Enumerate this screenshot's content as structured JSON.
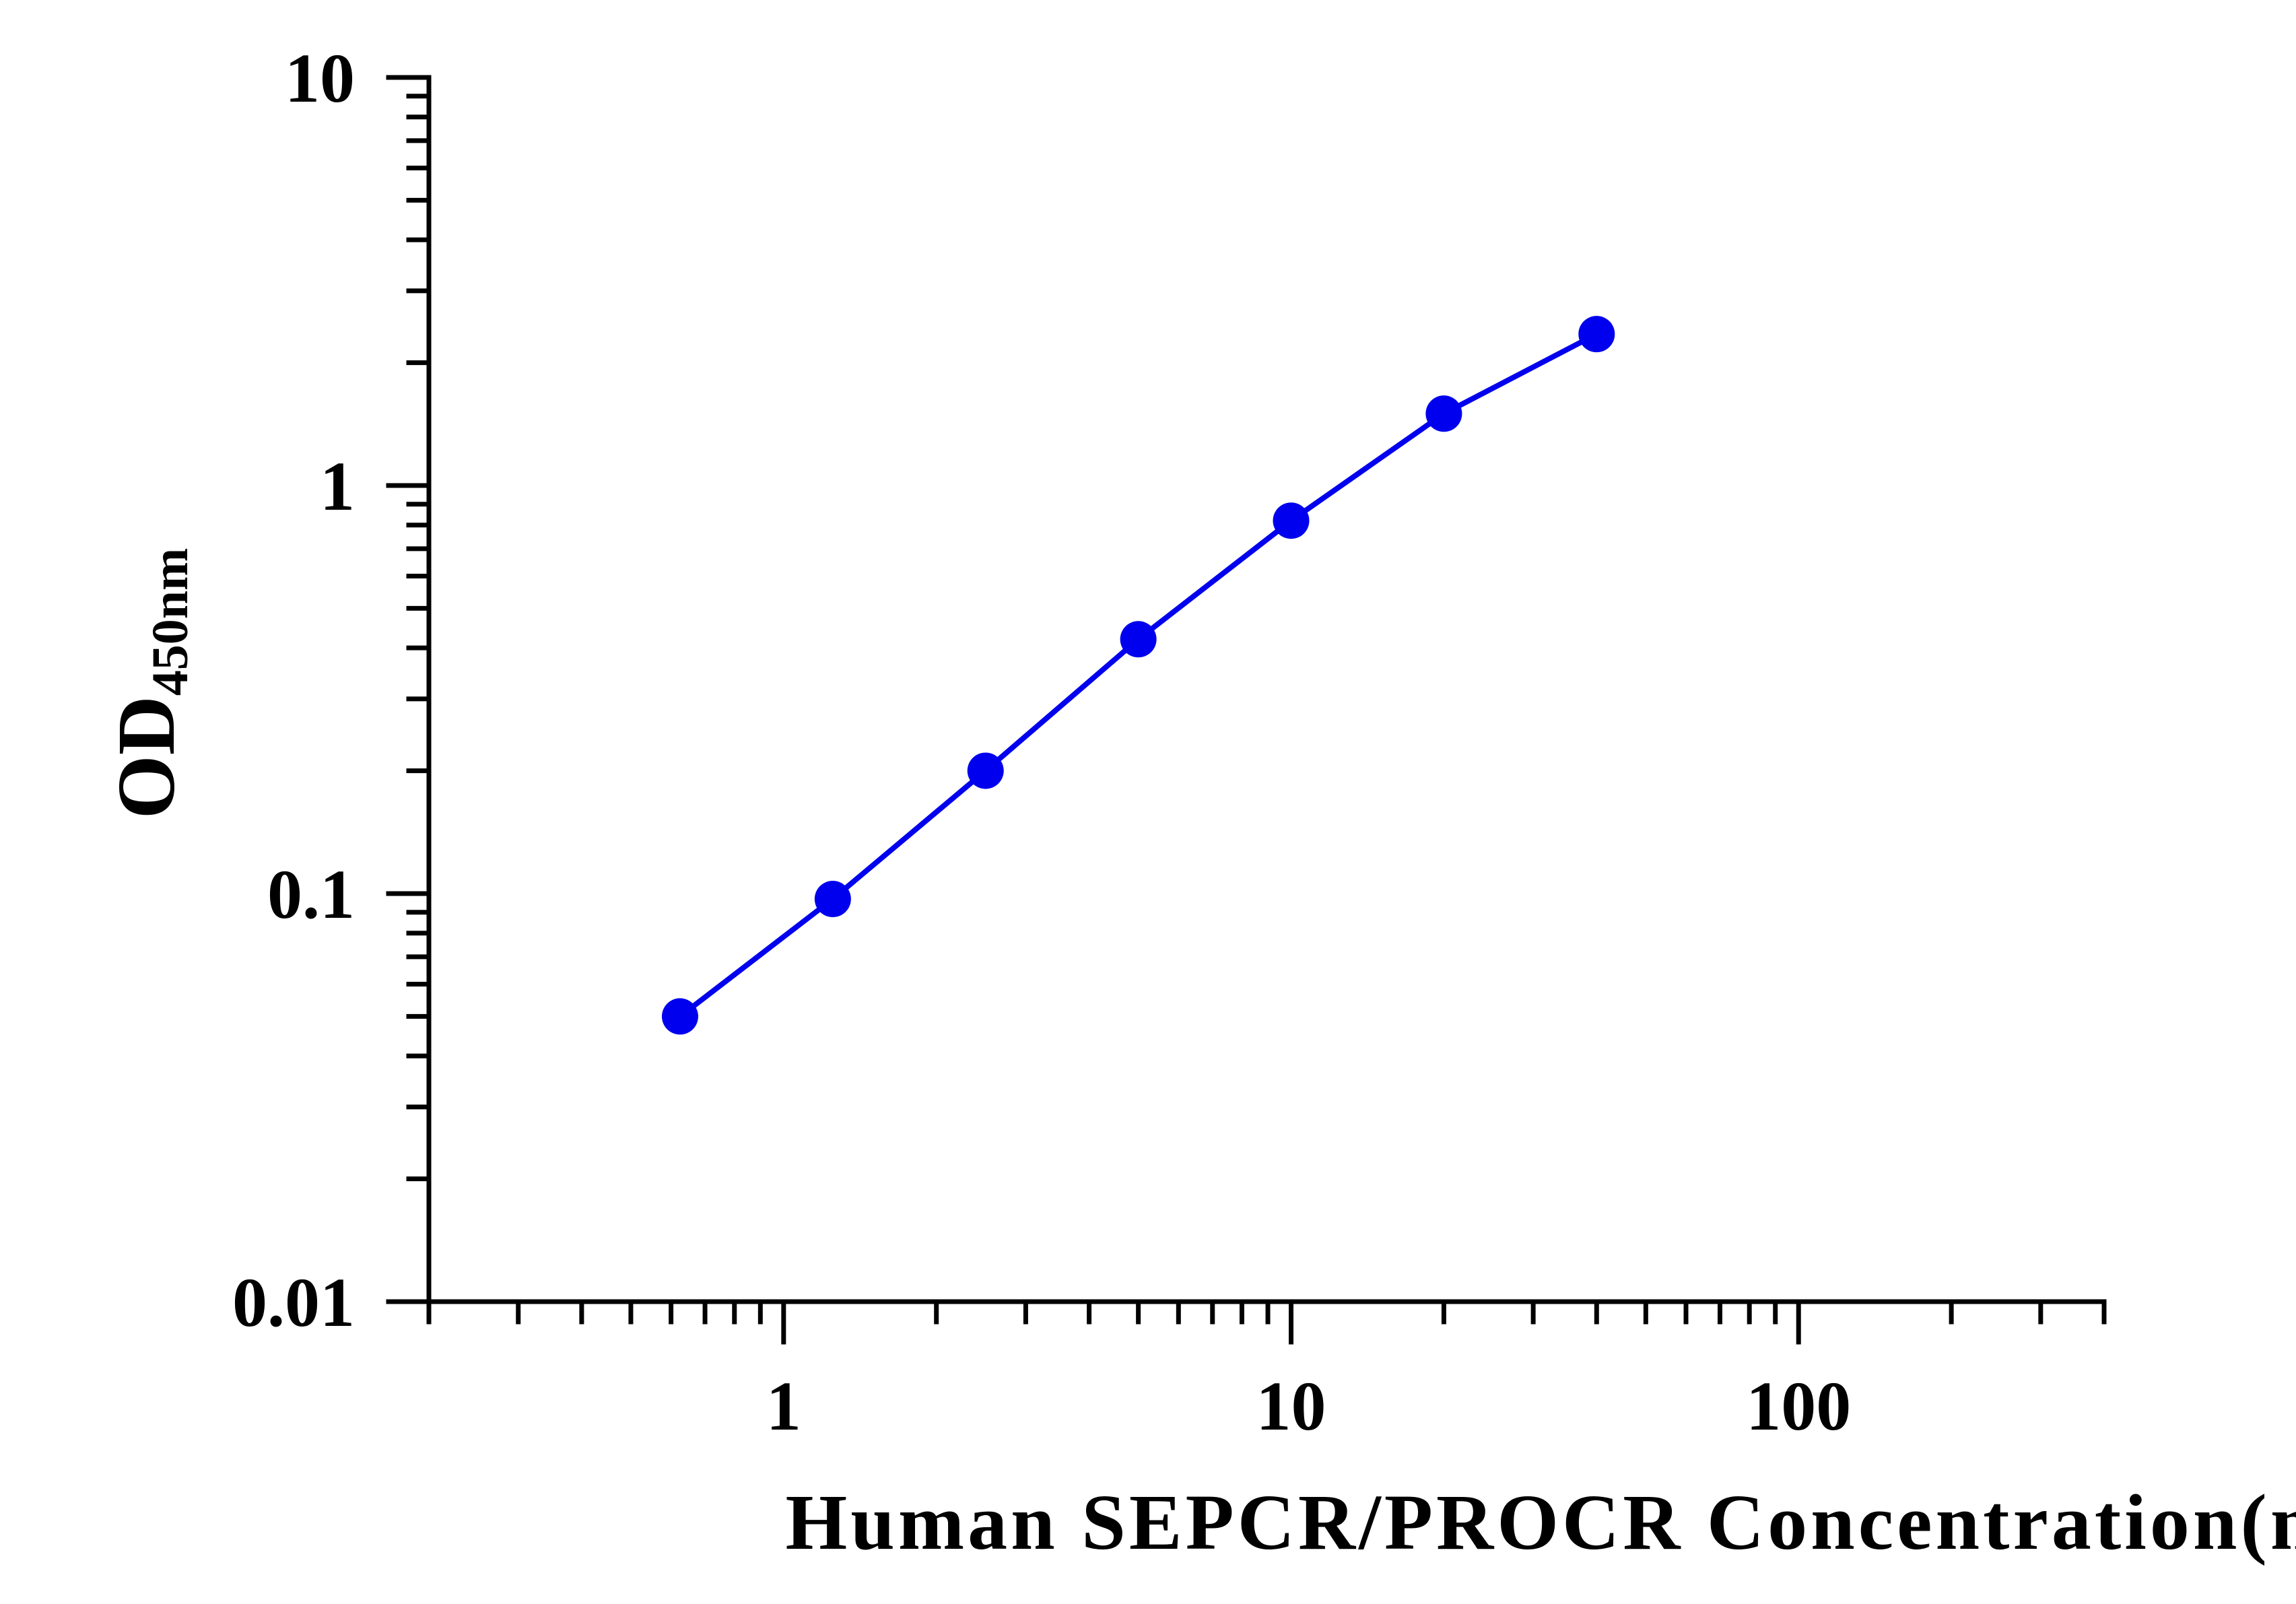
{
  "chart_data": {
    "type": "line",
    "title": "",
    "xlabel": "Human SEPCR/PROCR Concentration(ng/mL)",
    "ylabel": "OD",
    "ylabel_subscript": "450nm",
    "xscale": "log",
    "yscale": "log",
    "xlim": [
      0.2,
      400
    ],
    "ylim": [
      0.01,
      10
    ],
    "x_ticks": [
      "1",
      "10",
      "100"
    ],
    "y_ticks": [
      "0.01",
      "0.1",
      "1",
      "10"
    ],
    "grid": false,
    "legend": "none",
    "series": [
      {
        "x": [
          0.625,
          1.25,
          2.5,
          5,
          10,
          20,
          40
        ],
        "y": [
          0.05,
          0.097,
          0.2,
          0.42,
          0.82,
          1.5,
          2.35
        ],
        "color": "#0000ee",
        "marker": "circle"
      }
    ]
  }
}
